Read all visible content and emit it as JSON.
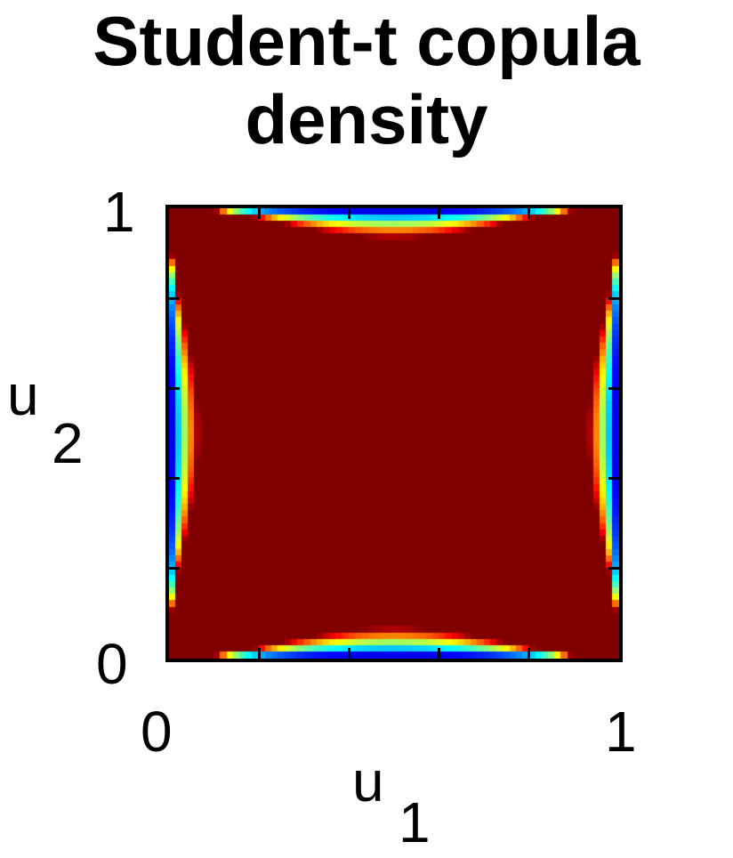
{
  "chart_data": {
    "type": "heatmap",
    "title": "Student-t copula density",
    "title_lines": [
      "Student-t copula",
      "density"
    ],
    "xlabel": "u",
    "xlabel_sub": "1",
    "ylabel": "u",
    "ylabel_sub": "2",
    "xlim": [
      0,
      1
    ],
    "ylim": [
      0,
      1
    ],
    "x_tick_labels": [
      "0",
      "1"
    ],
    "y_tick_labels": [
      "0",
      "1"
    ],
    "colormap": "jet",
    "correlation": 0,
    "degrees_of_freedom": 1,
    "grid": false
  }
}
